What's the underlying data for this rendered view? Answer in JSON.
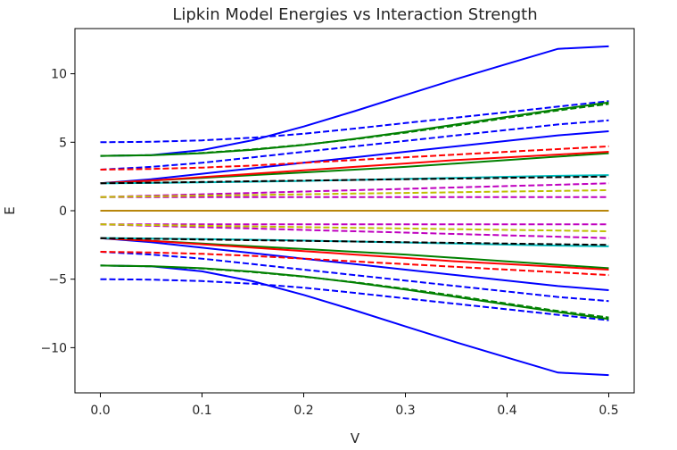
{
  "chart_data": {
    "type": "line",
    "title": "Lipkin Model Energies vs Interaction Strength",
    "xlabel": "V",
    "ylabel": "E",
    "xlim": [
      -0.025,
      0.525
    ],
    "ylim": [
      -13.3,
      13.3
    ],
    "xticks": [
      "0.0",
      "0.1",
      "0.2",
      "0.3",
      "0.4",
      "0.5"
    ],
    "yticks": [
      "−10",
      "−5",
      "0",
      "5",
      "10"
    ],
    "ytick_values": [
      -10,
      -5,
      0,
      5,
      10
    ],
    "xtick_values": [
      0,
      0.1,
      0.2,
      0.3,
      0.4,
      0.5
    ],
    "grid": false,
    "x": [
      0,
      0.05,
      0.1,
      0.15,
      0.2,
      0.25,
      0.3,
      0.35,
      0.4,
      0.45,
      0.5
    ],
    "series": [
      {
        "color": "#0000ff",
        "style": "solid",
        "values": [
          4.0,
          4.06,
          4.43,
          5.15,
          6.15,
          7.27,
          8.45,
          9.61,
          10.72,
          11.82,
          12.0
        ]
      },
      {
        "color": "#0000ff",
        "style": "solid",
        "values": [
          -4.0,
          -4.06,
          -4.43,
          -5.15,
          -6.15,
          -7.27,
          -8.45,
          -9.61,
          -10.72,
          -11.82,
          -12.0
        ]
      },
      {
        "color": "#0000ff",
        "style": "dashed",
        "values": [
          5.0,
          5.03,
          5.14,
          5.33,
          5.62,
          6.0,
          6.4,
          6.8,
          7.2,
          7.6,
          8.0
        ]
      },
      {
        "color": "#0000ff",
        "style": "dashed",
        "values": [
          -5.0,
          -5.03,
          -5.14,
          -5.33,
          -5.62,
          -6.0,
          -6.4,
          -6.8,
          -7.2,
          -7.6,
          -8.0
        ]
      },
      {
        "color": "#0000ff",
        "style": "dashed",
        "values": [
          3.0,
          3.2,
          3.5,
          3.9,
          4.3,
          4.7,
          5.1,
          5.5,
          5.9,
          6.3,
          6.6
        ]
      },
      {
        "color": "#0000ff",
        "style": "dashed",
        "values": [
          -3.0,
          -3.2,
          -3.5,
          -3.9,
          -4.3,
          -4.7,
          -5.1,
          -5.5,
          -5.9,
          -6.3,
          -6.6
        ]
      },
      {
        "color": "#0000ff",
        "style": "solid",
        "values": [
          2.0,
          2.3,
          2.7,
          3.1,
          3.5,
          3.9,
          4.3,
          4.7,
          5.1,
          5.5,
          5.8
        ]
      },
      {
        "color": "#0000ff",
        "style": "solid",
        "values": [
          -2.0,
          -2.3,
          -2.7,
          -3.1,
          -3.5,
          -3.9,
          -4.3,
          -4.7,
          -5.1,
          -5.5,
          -5.8
        ]
      },
      {
        "color": "#008000",
        "style": "solid",
        "values": [
          4.0,
          4.05,
          4.2,
          4.45,
          4.8,
          5.25,
          5.75,
          6.3,
          6.85,
          7.4,
          7.9
        ]
      },
      {
        "color": "#008000",
        "style": "solid",
        "values": [
          -4.0,
          -4.05,
          -4.2,
          -4.45,
          -4.8,
          -5.25,
          -5.75,
          -6.3,
          -6.85,
          -7.4,
          -7.9
        ]
      },
      {
        "color": "#008000",
        "style": "dashed",
        "values": [
          4.0,
          4.06,
          4.22,
          4.48,
          4.82,
          5.22,
          5.7,
          6.22,
          6.78,
          7.32,
          7.8
        ]
      },
      {
        "color": "#008000",
        "style": "dashed",
        "values": [
          -4.0,
          -4.06,
          -4.22,
          -4.48,
          -4.82,
          -5.22,
          -5.7,
          -6.22,
          -6.78,
          -7.32,
          -7.8
        ]
      },
      {
        "color": "#008000",
        "style": "solid",
        "values": [
          2.0,
          2.2,
          2.4,
          2.6,
          2.8,
          3.0,
          3.2,
          3.45,
          3.7,
          3.95,
          4.2
        ]
      },
      {
        "color": "#008000",
        "style": "solid",
        "values": [
          -2.0,
          -2.2,
          -2.4,
          -2.6,
          -2.8,
          -3.0,
          -3.2,
          -3.45,
          -3.7,
          -3.95,
          -4.2
        ]
      },
      {
        "color": "#ff0000",
        "style": "dashed",
        "values": [
          3.0,
          3.05,
          3.15,
          3.3,
          3.5,
          3.7,
          3.9,
          4.1,
          4.3,
          4.5,
          4.7
        ]
      },
      {
        "color": "#ff0000",
        "style": "dashed",
        "values": [
          -3.0,
          -3.05,
          -3.15,
          -3.3,
          -3.5,
          -3.7,
          -3.9,
          -4.1,
          -4.3,
          -4.5,
          -4.7
        ]
      },
      {
        "color": "#ff0000",
        "style": "solid",
        "values": [
          2.0,
          2.2,
          2.45,
          2.7,
          2.95,
          3.2,
          3.45,
          3.7,
          3.9,
          4.1,
          4.3
        ]
      },
      {
        "color": "#ff0000",
        "style": "solid",
        "values": [
          -2.0,
          -2.2,
          -2.45,
          -2.7,
          -2.95,
          -3.2,
          -3.45,
          -3.7,
          -3.9,
          -4.1,
          -4.3
        ]
      },
      {
        "color": "#00bfbf",
        "style": "solid",
        "values": [
          2.0,
          2.03,
          2.07,
          2.12,
          2.18,
          2.25,
          2.32,
          2.4,
          2.48,
          2.55,
          2.6
        ]
      },
      {
        "color": "#00bfbf",
        "style": "solid",
        "values": [
          -2.0,
          -2.03,
          -2.07,
          -2.12,
          -2.18,
          -2.25,
          -2.32,
          -2.4,
          -2.48,
          -2.55,
          -2.6
        ]
      },
      {
        "color": "#bf00bf",
        "style": "dashed",
        "values": [
          1.0,
          1.0,
          1.0,
          1.0,
          1.0,
          1.0,
          1.0,
          1.0,
          1.0,
          1.0,
          1.0
        ]
      },
      {
        "color": "#bf00bf",
        "style": "dashed",
        "values": [
          -1.0,
          -1.0,
          -1.0,
          -1.0,
          -1.0,
          -1.0,
          -1.0,
          -1.0,
          -1.0,
          -1.0,
          -1.0
        ]
      },
      {
        "color": "#bf00bf",
        "style": "dashed",
        "values": [
          1.0,
          1.1,
          1.2,
          1.3,
          1.4,
          1.5,
          1.6,
          1.7,
          1.8,
          1.9,
          2.0
        ]
      },
      {
        "color": "#bf00bf",
        "style": "dashed",
        "values": [
          -1.0,
          -1.1,
          -1.2,
          -1.3,
          -1.4,
          -1.5,
          -1.6,
          -1.7,
          -1.8,
          -1.9,
          -2.0
        ]
      },
      {
        "color": "#bfbf00",
        "style": "dashed",
        "values": [
          1.0,
          1.05,
          1.1,
          1.15,
          1.2,
          1.25,
          1.3,
          1.35,
          1.4,
          1.45,
          1.5
        ]
      },
      {
        "color": "#bfbf00",
        "style": "dashed",
        "values": [
          -1.0,
          -1.05,
          -1.1,
          -1.15,
          -1.2,
          -1.25,
          -1.3,
          -1.35,
          -1.4,
          -1.45,
          -1.5
        ]
      },
      {
        "color": "#000000",
        "style": "dashed",
        "values": [
          2.0,
          2.05,
          2.1,
          2.15,
          2.2,
          2.25,
          2.3,
          2.35,
          2.4,
          2.45,
          2.5
        ]
      },
      {
        "color": "#000000",
        "style": "dashed",
        "values": [
          -2.0,
          -2.05,
          -2.1,
          -2.15,
          -2.2,
          -2.25,
          -2.3,
          -2.35,
          -2.4,
          -2.45,
          -2.5
        ]
      },
      {
        "color": "#b8860b",
        "style": "solid",
        "values": [
          0,
          0,
          0,
          0,
          0,
          0,
          0,
          0,
          0,
          0,
          0
        ]
      }
    ]
  }
}
